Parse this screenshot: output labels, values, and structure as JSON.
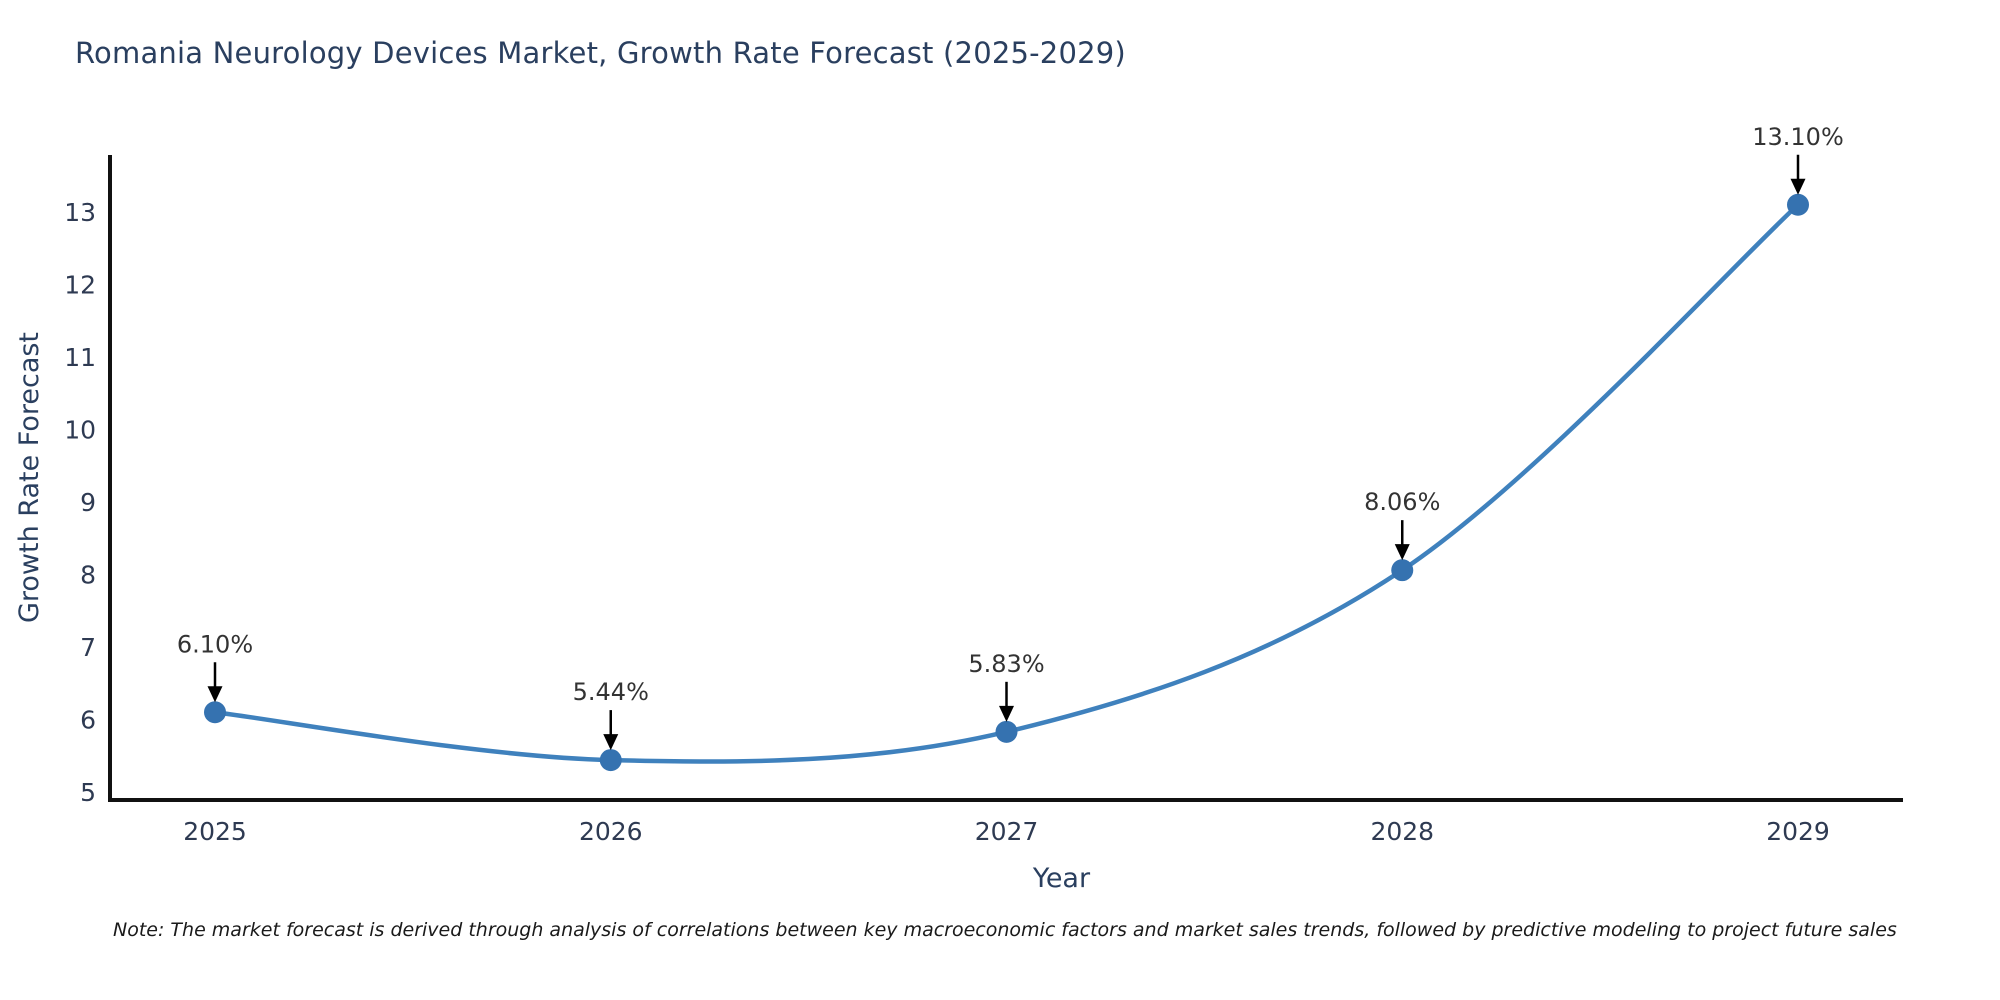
{
  "chart_data": {
    "type": "line",
    "title": "Romania Neurology Devices Market, Growth Rate Forecast (2025-2029)",
    "xlabel": "Year",
    "ylabel": "Growth Rate Forecast",
    "x": [
      2025,
      2026,
      2027,
      2028,
      2029
    ],
    "values": [
      6.1,
      5.44,
      5.83,
      8.06,
      13.1
    ],
    "point_labels": [
      "6.10%",
      "5.44%",
      "5.83%",
      "8.06%",
      "13.10%"
    ],
    "ylim": [
      5,
      13
    ],
    "yticks": [
      5,
      6,
      7,
      8,
      9,
      10,
      11,
      12,
      13
    ],
    "grid": false,
    "legend": "none",
    "note": "Note: The market forecast is derived through analysis of correlations between key macroeconomic factors and market sales trends, followed by predictive modeling to project future sales",
    "colors": {
      "line": "#3f81bd",
      "marker": "#3572b0",
      "axis": "#111111",
      "tick_text": "#2e3a52",
      "title_text": "#2a3f5f",
      "annotation_text": "#333333",
      "arrow": "#000000",
      "background": "#ffffff"
    }
  }
}
